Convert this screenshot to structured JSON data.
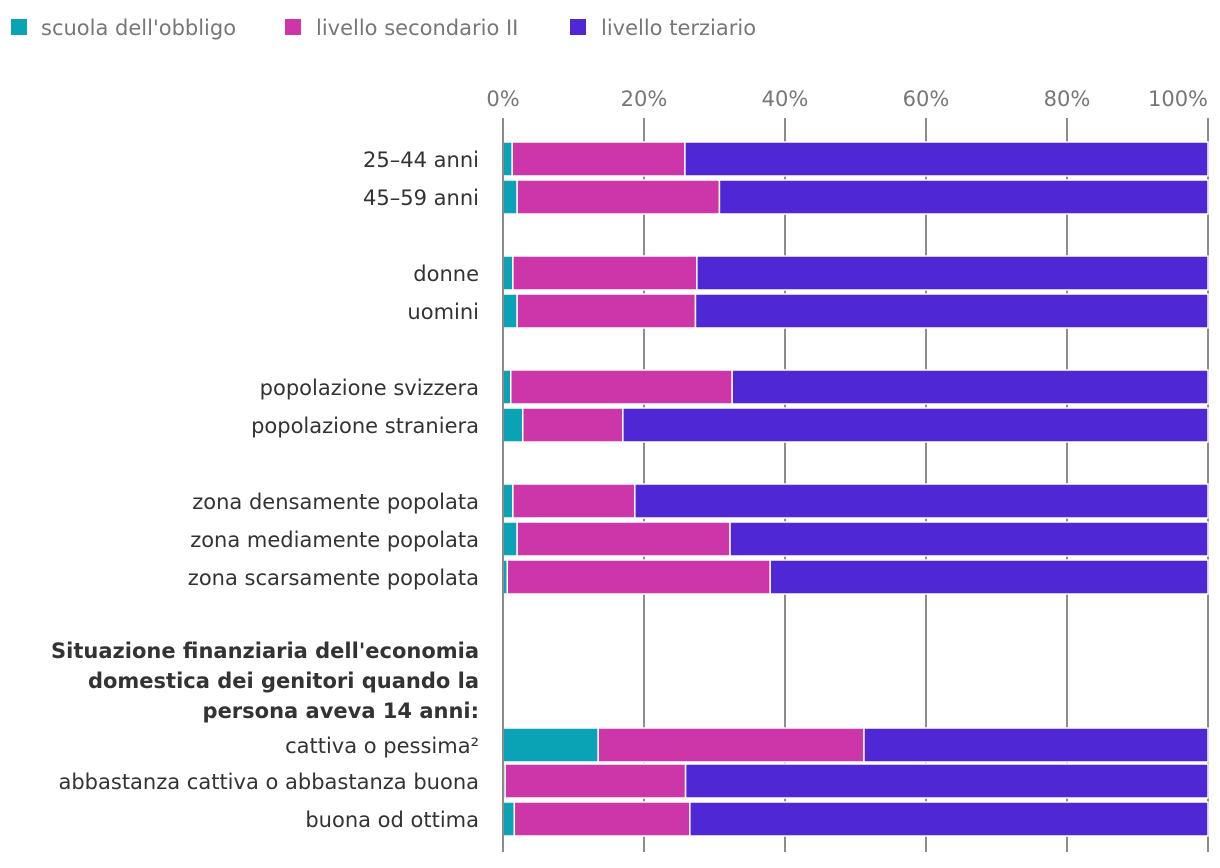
{
  "chart_data": {
    "type": "bar",
    "orientation": "horizontal",
    "stacked": true,
    "legend": [
      {
        "name": "scuola dell'obbligo",
        "color": "#0aa3b5"
      },
      {
        "name": "livello secondario II",
        "color": "#cc36a8"
      },
      {
        "name": "livello terziario",
        "color": "#4f27d4"
      }
    ],
    "xlim": [
      0,
      100
    ],
    "xticks": [
      "0%",
      "20%",
      "40%",
      "60%",
      "80%",
      "100%"
    ],
    "grid": true,
    "legend_position": "top-left",
    "group_heading": "Situazione finanziaria dell'economia domestica dei genitori quando la persona aveva 14 anni:",
    "heading_lines": [
      "Situazione finanziaria dell'economia",
      "domestica dei genitori quando la",
      "persona aveva 14 anni:"
    ],
    "categories": [
      "25–44 anni",
      "45–59 anni",
      "donne",
      "uomini",
      "popolazione svizzera",
      "popolazione straniera",
      "zona densamente popolata",
      "zona mediamente popolata",
      "zona scarsamente popolata",
      "cattiva o pessima²",
      "abbastanza cattiva o abbastanza buona",
      "buona od ottima"
    ],
    "series": [
      {
        "name": "scuola dell'obbligo",
        "values": [
          1.3,
          2.0,
          1.4,
          2.0,
          1.1,
          2.8,
          1.4,
          2.0,
          0.6,
          13.5,
          0.3,
          1.6
        ]
      },
      {
        "name": "livello secondario II",
        "values": [
          24.5,
          28.7,
          26.1,
          25.3,
          31.4,
          14.2,
          17.3,
          30.2,
          37.3,
          37.7,
          25.6,
          24.9
        ]
      },
      {
        "name": "livello terziario",
        "values": [
          74.2,
          69.3,
          72.5,
          72.7,
          67.5,
          83.0,
          81.3,
          67.8,
          62.1,
          48.8,
          74.1,
          73.5
        ]
      }
    ]
  }
}
